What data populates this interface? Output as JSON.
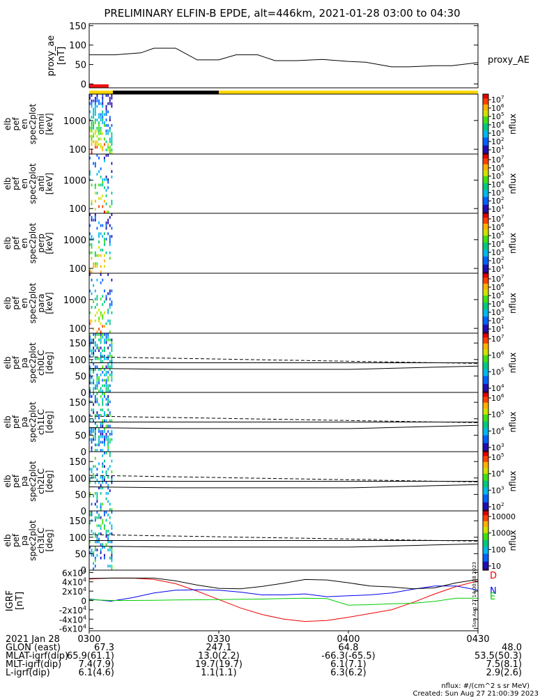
{
  "title": "PRELIMINARY ELFIN-B EPDE, alt=446km, 2021-01-28 03:00 to 04:30",
  "footer": {
    "units": "nflux: #/(cm^2 s sr MeV)",
    "created": "Created: Sun Aug 27 21:00:39 2023",
    "stamp": "Sun Aug 27 14:00:38 2023"
  },
  "ephemeris": {
    "row_labels": [
      "2021 Jan 28",
      "GLON (east)",
      "MLAT-igrf(dip)",
      "MLT-igrf(dip)",
      "L-igrf(dip)"
    ],
    "columns": [
      {
        "time": "0300",
        "values": [
          "67.3",
          "65.9(61.1)",
          "7.4(7.9)",
          "6.1(4.6)"
        ]
      },
      {
        "time": "0330",
        "values": [
          "247.1",
          "13.0(2.2)",
          "19.7(19.7)",
          "1.1(1.1)"
        ]
      },
      {
        "time": "0400",
        "values": [
          "64.8",
          "-66.3(-65.5)",
          "6.1(7.1)",
          "6.3(6.2)"
        ]
      },
      {
        "time": "0430",
        "values": [
          "48.0",
          "53.5(50.3)",
          "7.5(8.1)",
          "2.9(2.6)"
        ]
      }
    ]
  },
  "chart_data": [
    {
      "type": "line",
      "name": "proxy_ae",
      "ylabel": [
        "proxy_ae",
        "[nT]"
      ],
      "legend": "proxy_AE",
      "ylim": [
        -10,
        155
      ],
      "yticks": [
        "150",
        "100",
        "50",
        "0"
      ],
      "x_minutes": [
        0,
        6,
        12,
        15,
        20,
        25,
        30,
        34,
        39,
        43,
        48,
        54,
        60,
        64,
        70,
        74,
        80,
        84,
        90
      ],
      "values": [
        75,
        75,
        80,
        92,
        92,
        62,
        62,
        75,
        75,
        60,
        60,
        63,
        58,
        56,
        44,
        44,
        47,
        47,
        55
      ]
    },
    {
      "type": "bar",
      "name": "orbit_quality_bar",
      "segments": [
        {
          "start": 0,
          "end": 5.5,
          "color": "#ffd700"
        },
        {
          "start": 5.5,
          "end": 30,
          "color": "#000000"
        },
        {
          "start": 30,
          "end": 90,
          "color": "#ffd700"
        }
      ],
      "marker": {
        "start": 0,
        "end": 4.5,
        "color": "#ee1111"
      }
    },
    {
      "type": "heatmap",
      "name": "elb_pef_en_spec2plot_omni",
      "ylabel": [
        "elb",
        "pef",
        "en",
        "spec2plot",
        "omni",
        "[keV]"
      ],
      "yticks": [
        "1000",
        "100"
      ],
      "colorbar_label": "nflux",
      "colorbar_ticks": [
        "10^7",
        "10^6",
        "10^5",
        "10^4",
        "10^3",
        "10^2",
        "10^1"
      ],
      "data_interval_min": [
        0,
        5.5
      ]
    },
    {
      "type": "heatmap",
      "name": "elb_pef_en_spec2plot_anti",
      "ylabel": [
        "elb",
        "pef",
        "en",
        "spec2plot",
        "anti",
        "[keV]"
      ],
      "yticks": [
        "1000",
        "100"
      ],
      "colorbar_label": "nflux",
      "colorbar_ticks": [
        "10^7",
        "10^6",
        "10^5",
        "10^4",
        "10^3",
        "10^2",
        "10^1"
      ],
      "data_interval_min": [
        0,
        5.5
      ]
    },
    {
      "type": "heatmap",
      "name": "elb_pef_en_spec2plot_perp",
      "ylabel": [
        "elb",
        "pef",
        "en",
        "spec2plot",
        "perp",
        "[keV]"
      ],
      "yticks": [
        "1000",
        "100"
      ],
      "colorbar_label": "nflux",
      "colorbar_ticks": [
        "10^7",
        "10^6",
        "10^5",
        "10^4",
        "10^3",
        "10^2",
        "10^1"
      ],
      "data_interval_min": [
        0,
        5.5
      ]
    },
    {
      "type": "heatmap",
      "name": "elb_pef_en_spec2plot_para",
      "ylabel": [
        "elb",
        "pef",
        "en",
        "spec2plot",
        "para",
        "[keV]"
      ],
      "yticks": [
        "1000",
        "100"
      ],
      "colorbar_label": "nflux",
      "colorbar_ticks": [
        "10^7",
        "10^6",
        "10^5",
        "10^4",
        "10^3",
        "10^2",
        "10^1"
      ],
      "data_interval_min": [
        0,
        5.5
      ]
    },
    {
      "type": "heatmap",
      "name": "elb_pef_pa_spec2plot_ch0LC",
      "ylabel": [
        "elb",
        "pef",
        "pa",
        "spec2plot",
        "ch0LC",
        "[deg]"
      ],
      "yticks": [
        "150",
        "100",
        "50",
        "0"
      ],
      "ylim": [
        0,
        180
      ],
      "colorbar_label": "nflux",
      "colorbar_ticks": [
        "10^7",
        "10^6",
        "10^5",
        "10^4"
      ],
      "data_interval_min": [
        0,
        5.5
      ],
      "loss_cone_solid": [
        70,
        90
      ],
      "loss_cone_dashed": [
        108,
        88
      ]
    },
    {
      "type": "heatmap",
      "name": "elb_pef_pa_spec2plot_ch1LC",
      "ylabel": [
        "elb",
        "pef",
        "pa",
        "spec2plot",
        "ch1LC",
        "[deg]"
      ],
      "yticks": [
        "150",
        "100",
        "50",
        "0"
      ],
      "ylim": [
        0,
        180
      ],
      "colorbar_label": "nflux",
      "colorbar_ticks": [
        "10^6",
        "10^5",
        "10^4",
        "10^3"
      ],
      "data_interval_min": [
        0,
        5.5
      ],
      "loss_cone_solid": [
        70,
        90
      ],
      "loss_cone_dashed": [
        108,
        88
      ]
    },
    {
      "type": "heatmap",
      "name": "elb_pef_pa_spec2plot_ch2LC",
      "ylabel": [
        "elb",
        "pef",
        "pa",
        "spec2plot",
        "ch2LC",
        "[deg]"
      ],
      "yticks": [
        "150",
        "100",
        "50",
        "0"
      ],
      "ylim": [
        0,
        180
      ],
      "colorbar_label": "nflux",
      "colorbar_ticks": [
        "10^5",
        "10^4",
        "10^3",
        "10^2"
      ],
      "data_interval_min": [
        0,
        5.5
      ],
      "loss_cone_solid": [
        70,
        90
      ],
      "loss_cone_dashed": [
        108,
        88
      ]
    },
    {
      "type": "heatmap",
      "name": "elb_pef_pa_spec2plot_ch3LC",
      "ylabel": [
        "elb",
        "pef",
        "pa",
        "spec2plot",
        "ch3LC",
        "[deg]"
      ],
      "yticks": [
        "150",
        "100",
        "50",
        "0"
      ],
      "ylim": [
        0,
        180
      ],
      "colorbar_label": "nflux",
      "colorbar_ticks": [
        "10000",
        "1000",
        "100",
        "10"
      ],
      "data_interval_min": [
        0,
        5.5
      ],
      "loss_cone_solid": [
        70,
        90
      ],
      "loss_cone_dashed": [
        108,
        88
      ]
    },
    {
      "type": "line",
      "name": "IGRF",
      "ylabel": [
        "IGRF",
        "[nT]"
      ],
      "ylim": [
        -65000,
        65000
      ],
      "yticks": [
        "6x10^4",
        "4x10^4",
        "2x10^4",
        "0",
        "-2x10^4",
        "-4x10^4",
        "-6x10^4"
      ],
      "legend": [
        "D",
        "N",
        "E"
      ],
      "x_minutes": [
        0,
        5,
        10,
        15,
        20,
        25,
        30,
        35,
        40,
        45,
        50,
        55,
        60,
        65,
        70,
        75,
        80,
        85,
        90
      ],
      "series": [
        {
          "name": "D",
          "color": "#ee0000",
          "values": [
            46000,
            48000,
            48000,
            45000,
            36000,
            20000,
            2000,
            -16000,
            -30000,
            -40000,
            -45000,
            -43000,
            -36000,
            -28000,
            -20000,
            -4000,
            14000,
            30000,
            42000
          ]
        },
        {
          "name": "N",
          "color": "#0000ee",
          "values": [
            3000,
            -1500,
            6000,
            16000,
            22000,
            23000,
            22000,
            18000,
            12000,
            12000,
            14000,
            8000,
            10000,
            12000,
            16000,
            24000,
            31000,
            31000,
            22000
          ]
        },
        {
          "name": "E",
          "color": "#00cc00",
          "values": [
            2000,
            0,
            0,
            500,
            1000,
            1500,
            2000,
            2500,
            3000,
            4000,
            5000,
            4000,
            -10000,
            -9000,
            -7000,
            -6000,
            -2000,
            5000,
            5000
          ]
        },
        {
          "values": [
            47000,
            48000,
            48000,
            48000,
            42000,
            33000,
            26000,
            25000,
            30000,
            37000,
            45000,
            44000,
            38000,
            31000,
            29000,
            25000,
            27000,
            38000,
            45000
          ]
        }
      ]
    }
  ]
}
